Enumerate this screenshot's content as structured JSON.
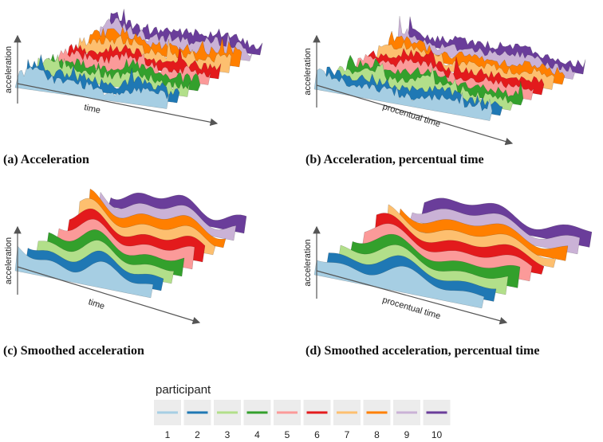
{
  "panels": [
    {
      "caption": "(a) Acceleration",
      "y_label": "acceleration",
      "x_label": "time",
      "style": "noisy"
    },
    {
      "caption": "(b) Acceleration, percentual time",
      "y_label": "acceleration",
      "x_label": "procentual time",
      "style": "noisy"
    },
    {
      "caption": "(c) Smoothed acceleration",
      "y_label": "acceleration",
      "x_label": "time",
      "style": "smooth"
    },
    {
      "caption": "(d) Smoothed acceleration, percentual time",
      "y_label": "acceleration",
      "x_label": "procentual time",
      "style": "smooth"
    }
  ],
  "legend": {
    "title": "participant",
    "entries": [
      {
        "label": "1",
        "color": "#a6cee3"
      },
      {
        "label": "2",
        "color": "#1f78b4"
      },
      {
        "label": "3",
        "color": "#b2df8a"
      },
      {
        "label": "4",
        "color": "#33a02c"
      },
      {
        "label": "5",
        "color": "#fb9a99"
      },
      {
        "label": "6",
        "color": "#e31a1c"
      },
      {
        "label": "7",
        "color": "#fdbf6f"
      },
      {
        "label": "8",
        "color": "#ff7f00"
      },
      {
        "label": "9",
        "color": "#cab2d6"
      },
      {
        "label": "10",
        "color": "#6a3d9a"
      }
    ]
  }
}
